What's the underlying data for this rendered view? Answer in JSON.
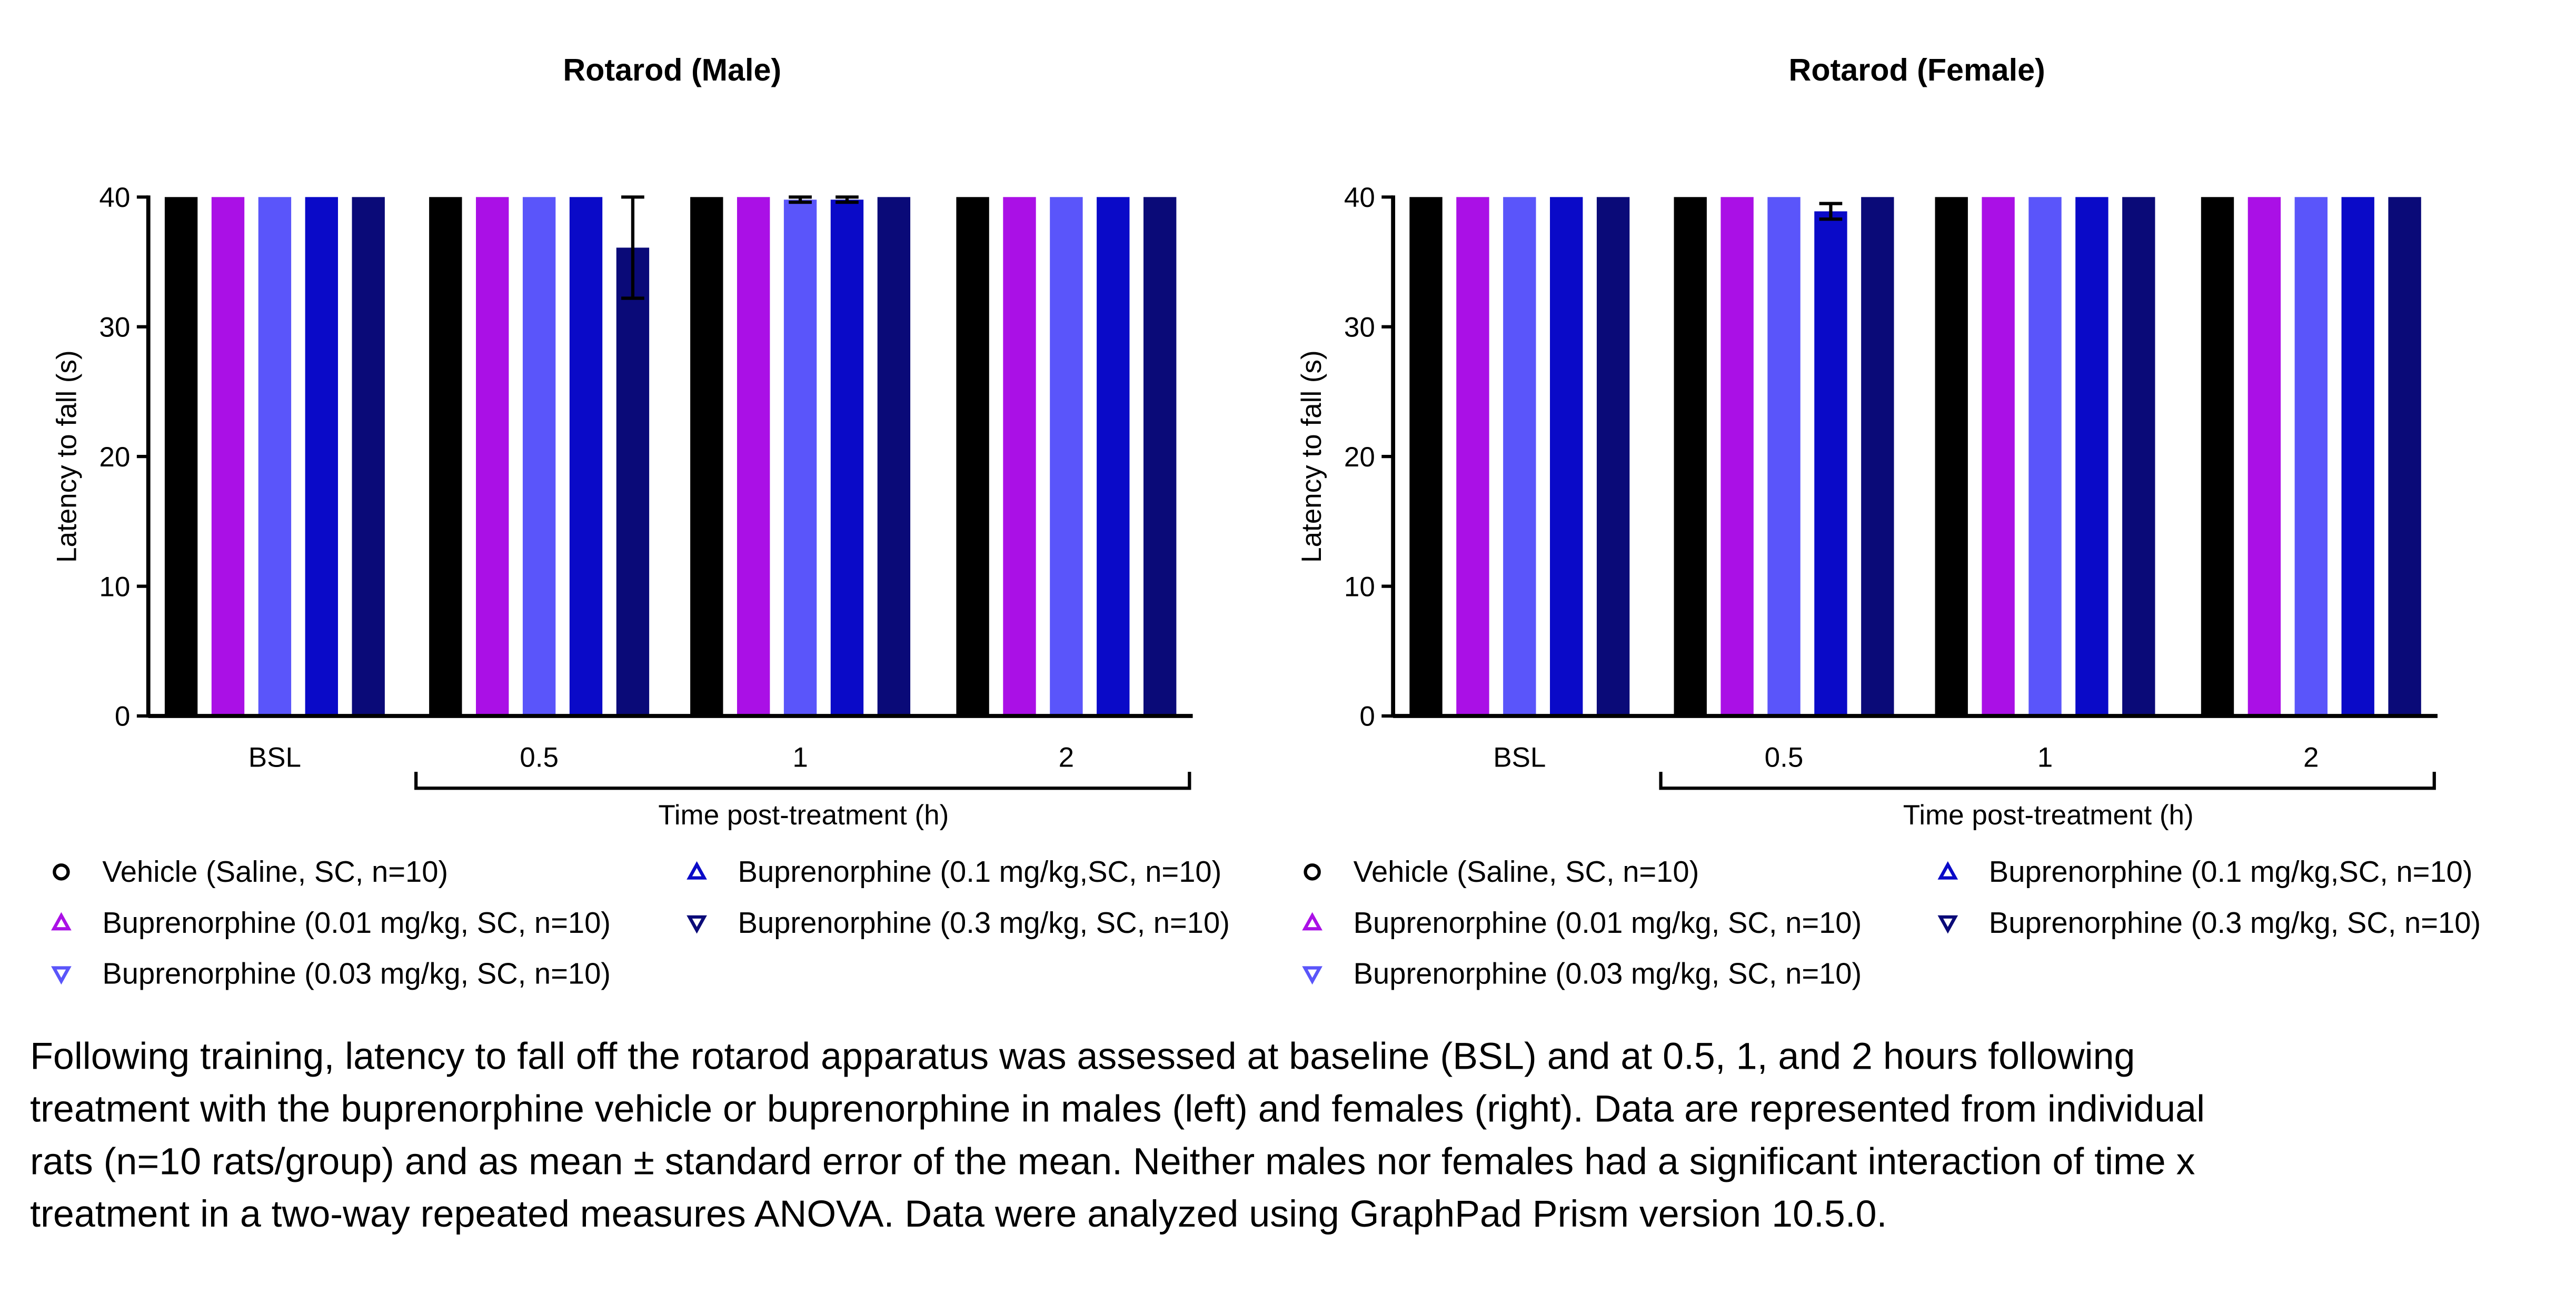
{
  "chart_data": [
    {
      "type": "bar",
      "title": "Rotarod (Male)",
      "y_label": "Latency to fall (s)",
      "x_label": "Time post-treatment (h)",
      "categories": [
        "BSL",
        "0.5",
        "1",
        "2"
      ],
      "ylim": [
        0,
        40
      ],
      "yticks": [
        0,
        10,
        20,
        30,
        40
      ],
      "series": [
        {
          "name": "Vehicle (Saline, SC, n=10)",
          "color": "#000000",
          "marker": "circle",
          "values": [
            40,
            40,
            40,
            40
          ],
          "errors": [
            0,
            0,
            0,
            0
          ]
        },
        {
          "name": "Buprenorphine (0.01 mg/kg, SC, n=10)",
          "color": "#aa10e6",
          "marker": "triangle-up",
          "values": [
            40,
            40,
            40,
            40
          ],
          "errors": [
            0,
            0,
            0,
            0
          ]
        },
        {
          "name": "Buprenorphine (0.03 mg/kg, SC, n=10)",
          "color": "#5a55fa",
          "marker": "triangle-down",
          "values": [
            40,
            40,
            39.8,
            40
          ],
          "errors": [
            0,
            0,
            0.2,
            0
          ]
        },
        {
          "name": "Buprenorphine (0.1 mg/kg,SC, n=10)",
          "color": "#0a0ac8",
          "marker": "triangle-up",
          "values": [
            40,
            40,
            39.8,
            40
          ],
          "errors": [
            0,
            0,
            0.2,
            0
          ]
        },
        {
          "name": "Buprenorphine (0.3 mg/kg, SC, n=10)",
          "color": "#0a0a78",
          "marker": "triangle-down",
          "values": [
            40,
            36.1,
            40,
            40
          ],
          "errors": [
            0,
            3.9,
            0,
            0
          ]
        }
      ]
    },
    {
      "type": "bar",
      "title": "Rotarod (Female)",
      "y_label": "Latency to fall (s)",
      "x_label": "Time post-treatment (h)",
      "categories": [
        "BSL",
        "0.5",
        "1",
        "2"
      ],
      "ylim": [
        0,
        40
      ],
      "yticks": [
        0,
        10,
        20,
        30,
        40
      ],
      "series": [
        {
          "name": "Vehicle (Saline, SC, n=10)",
          "color": "#000000",
          "marker": "circle",
          "values": [
            40,
            40,
            40,
            40
          ],
          "errors": [
            0,
            0,
            0,
            0
          ]
        },
        {
          "name": "Buprenorphine (0.01 mg/kg, SC, n=10)",
          "color": "#aa10e6",
          "marker": "triangle-up",
          "values": [
            40,
            40,
            40,
            40
          ],
          "errors": [
            0,
            0,
            0,
            0
          ]
        },
        {
          "name": "Buprenorphine (0.03 mg/kg, SC, n=10)",
          "color": "#5a55fa",
          "marker": "triangle-down",
          "values": [
            40,
            40,
            40,
            40
          ],
          "errors": [
            0,
            0,
            0,
            0
          ]
        },
        {
          "name": "Buprenorphine (0.1 mg/kg,SC, n=10)",
          "color": "#0a0ac8",
          "marker": "triangle-up",
          "values": [
            40,
            38.9,
            40,
            40
          ],
          "errors": [
            0,
            0.6,
            0,
            0
          ]
        },
        {
          "name": "Buprenorphine (0.3 mg/kg, SC, n=10)",
          "color": "#0a0a78",
          "marker": "triangle-down",
          "values": [
            40,
            40,
            40,
            40
          ],
          "errors": [
            0,
            0,
            0,
            0
          ]
        }
      ]
    }
  ],
  "caption": [
    "Following training, latency to fall off the rotarod apparatus was assessed at baseline (BSL) and at 0.5, 1, and 2 hours following",
    "treatment with the buprenorphine vehicle or buprenorphine in males (left) and females (right). Data are represented from individual",
    "rats (n=10 rats/group) and as mean ± standard error of the mean. Neither males nor females had a significant interaction of time x",
    "treatment in a two-way repeated measures ANOVA. Data were analyzed using GraphPad Prism version 10.5.0."
  ]
}
